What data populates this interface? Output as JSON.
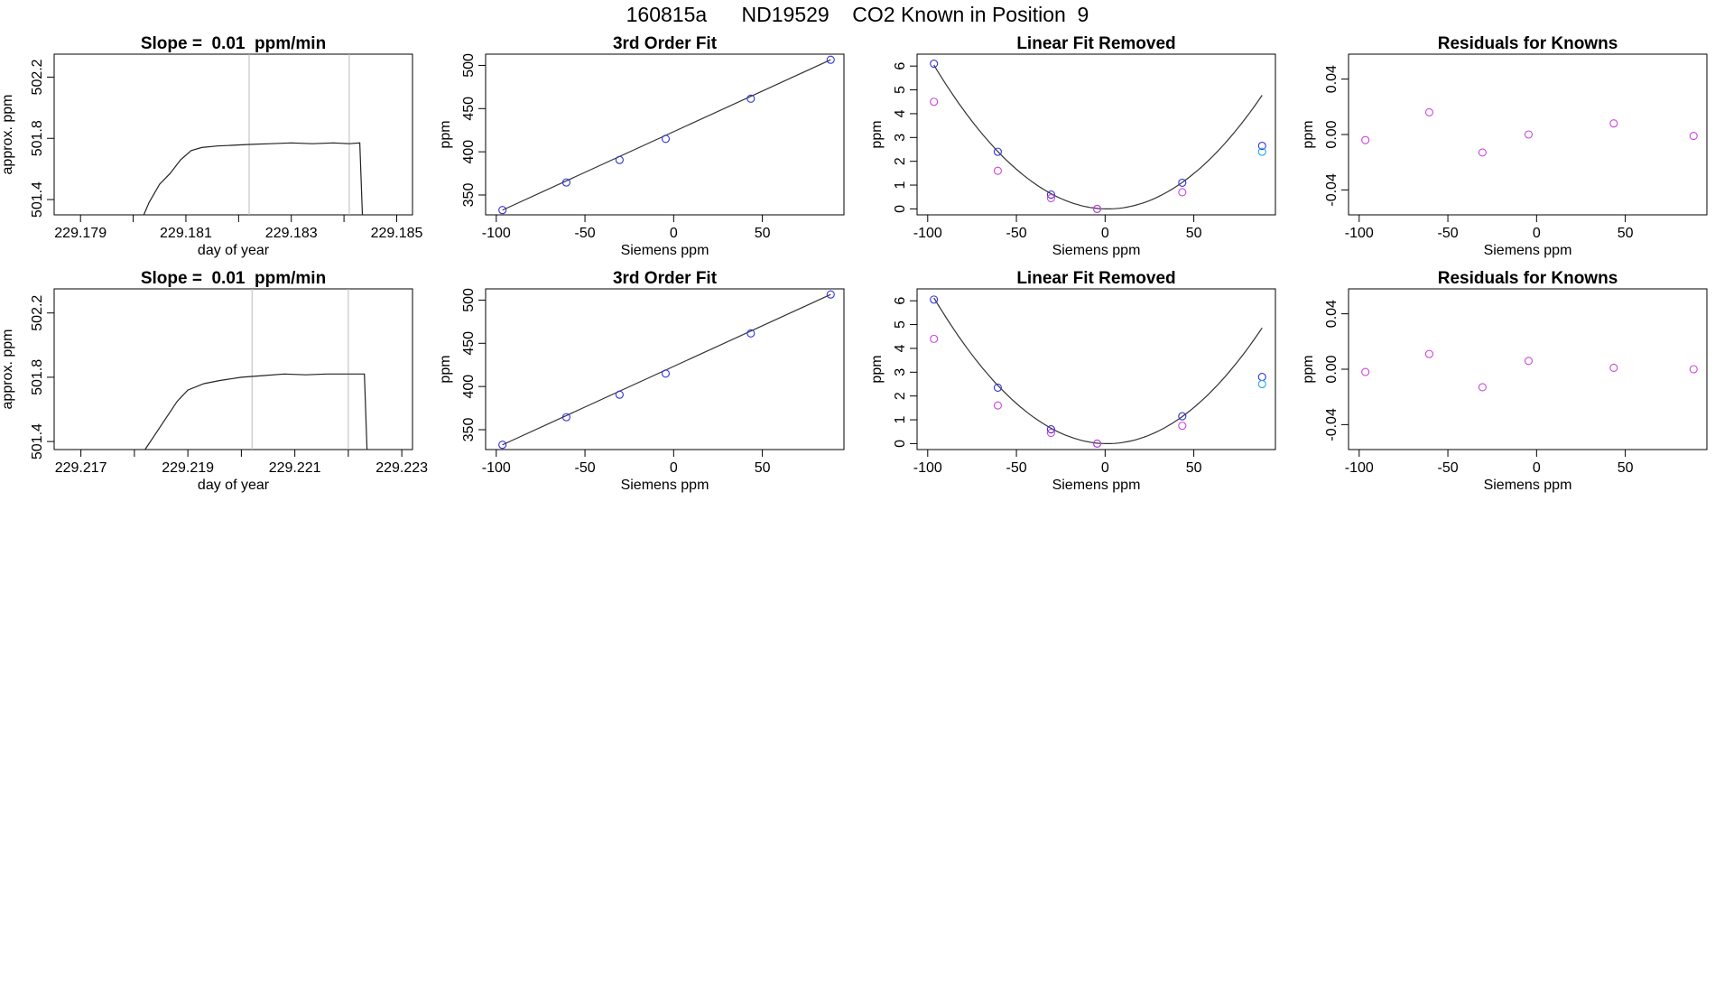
{
  "page_title": "160815a      ND19529    CO2 Known in Position  9",
  "colors": {
    "fit_line": "#333333",
    "point_blue": "#3333dd",
    "point_magenta": "#cc44dd",
    "point_cyan": "#22aadd",
    "trace": "#222222",
    "vline": "#bbbbbb"
  },
  "chart_data": [
    {
      "type": "line",
      "row": 1,
      "col": 1,
      "title": "Slope =  0.01  ppm/min",
      "xlabel": "day of year",
      "ylabel": "approx. ppm",
      "xlim": [
        229.1785,
        229.1853
      ],
      "ylim": [
        501.3,
        502.35
      ],
      "xticks": [
        229.179,
        229.18,
        229.181,
        229.182,
        229.183,
        229.184,
        229.185
      ],
      "xticklabels": [
        "229.179",
        "",
        "229.181",
        "",
        "229.183",
        "",
        "229.185"
      ],
      "yticks": [
        501.4,
        501.8,
        502.2
      ],
      "yticklabels": [
        "501.4",
        "501.8",
        "502.2"
      ],
      "vlines": [
        229.1822,
        229.1841
      ],
      "series": [
        {
          "name": "approx. ppm",
          "points": [
            [
              229.1802,
              501.3
            ],
            [
              229.1803,
              501.38
            ],
            [
              229.1805,
              501.5
            ],
            [
              229.1807,
              501.57
            ],
            [
              229.1809,
              501.66
            ],
            [
              229.1811,
              501.72
            ],
            [
              229.1813,
              501.74
            ],
            [
              229.1816,
              501.75
            ],
            [
              229.1819,
              501.755
            ],
            [
              229.1822,
              501.76
            ],
            [
              229.1826,
              501.765
            ],
            [
              229.183,
              501.77
            ],
            [
              229.1834,
              501.765
            ],
            [
              229.1838,
              501.77
            ],
            [
              229.1841,
              501.765
            ],
            [
              229.1843,
              501.77
            ],
            [
              229.18435,
              501.3
            ]
          ]
        }
      ]
    },
    {
      "type": "scatter",
      "row": 1,
      "col": 2,
      "title": "3rd Order Fit",
      "xlabel": "Siemens ppm",
      "ylabel": "ppm",
      "xlim": [
        -106,
        96
      ],
      "ylim": [
        327,
        513
      ],
      "xticks": [
        -100,
        -50,
        0,
        50
      ],
      "xticklabels": [
        "-100",
        "-50",
        "0",
        "50"
      ],
      "yticks": [
        350,
        400,
        450,
        500
      ],
      "yticklabels": [
        "350",
        "400",
        "450",
        "500"
      ],
      "fit_line": [
        [
          -96.5,
          332.5
        ],
        [
          88.5,
          506.5
        ]
      ],
      "series": [
        {
          "name": "knowns",
          "x": [
            -96.5,
            -60.5,
            -30.5,
            -4.5,
            43.5,
            88.5
          ],
          "y": [
            332.5,
            364.5,
            390.5,
            415.0,
            461.5,
            506.5
          ],
          "color_key": "point_blue"
        }
      ]
    },
    {
      "type": "scatter",
      "row": 1,
      "col": 3,
      "title": "Linear Fit Removed",
      "xlabel": "Siemens ppm",
      "ylabel": "ppm",
      "xlim": [
        -106,
        96
      ],
      "ylim": [
        -0.25,
        6.5
      ],
      "xticks": [
        -100,
        -50,
        0,
        50
      ],
      "xticklabels": [
        "-100",
        "-50",
        "0",
        "50"
      ],
      "yticks": [
        0,
        1,
        2,
        3,
        4,
        5,
        6
      ],
      "yticklabels": [
        "0",
        "1",
        "2",
        "3",
        "4",
        "5",
        "6"
      ],
      "curve": {
        "a": 0.00063,
        "b": -0.0018,
        "c": 0,
        "xmin": -96.5,
        "xmax": 88.5
      },
      "series": [
        {
          "name": "fit points",
          "x": [
            -96.5,
            -60.5,
            -30.5,
            -4.5,
            43.5,
            88.5
          ],
          "y": [
            6.1,
            2.4,
            0.6,
            0.0,
            1.1,
            2.65
          ],
          "color_key": "point_blue"
        },
        {
          "name": "raw points",
          "x": [
            -96.5,
            -60.5,
            -30.5,
            -4.5,
            43.5
          ],
          "y": [
            4.5,
            1.6,
            0.45,
            0.0,
            0.7
          ],
          "color_key": "point_magenta"
        },
        {
          "name": "extra",
          "x": [
            88.5
          ],
          "y": [
            2.4
          ],
          "color_key": "point_cyan"
        }
      ]
    },
    {
      "type": "scatter",
      "row": 1,
      "col": 4,
      "title": "Residuals for Knowns",
      "xlabel": "Siemens ppm",
      "ylabel": "ppm",
      "xlim": [
        -106,
        96
      ],
      "ylim": [
        -0.058,
        0.058
      ],
      "xticks": [
        -100,
        -50,
        0,
        50
      ],
      "xticklabels": [
        "-100",
        "-50",
        "0",
        "50"
      ],
      "yticks": [
        -0.04,
        0.0,
        0.04
      ],
      "yticklabels": [
        "-0.04",
        "0.00",
        "0.04"
      ],
      "series": [
        {
          "name": "residuals",
          "x": [
            -96.5,
            -60.5,
            -30.5,
            -4.5,
            43.5,
            88.5
          ],
          "y": [
            -0.004,
            0.016,
            -0.013,
            0.0,
            0.008,
            -0.001
          ],
          "color_key": "point_magenta"
        }
      ]
    },
    {
      "type": "line",
      "row": 2,
      "col": 1,
      "title": "Slope =  0.01  ppm/min",
      "xlabel": "day of year",
      "ylabel": "approx. ppm",
      "xlim": [
        229.2165,
        229.2232
      ],
      "ylim": [
        501.35,
        502.35
      ],
      "xticks": [
        229.217,
        229.218,
        229.219,
        229.22,
        229.221,
        229.222,
        229.223
      ],
      "xticklabels": [
        "229.217",
        "",
        "229.219",
        "",
        "229.221",
        "",
        "229.223"
      ],
      "yticks": [
        501.4,
        501.8,
        502.2
      ],
      "yticklabels": [
        "501.4",
        "501.8",
        "502.2"
      ],
      "vlines": [
        229.2202,
        229.222
      ],
      "series": [
        {
          "name": "approx. ppm",
          "points": [
            [
              229.2182,
              501.35
            ],
            [
              229.2184,
              501.45
            ],
            [
              229.2186,
              501.55
            ],
            [
              229.2188,
              501.65
            ],
            [
              229.219,
              501.72
            ],
            [
              229.2193,
              501.76
            ],
            [
              229.2196,
              501.78
            ],
            [
              229.22,
              501.8
            ],
            [
              229.2204,
              501.81
            ],
            [
              229.2208,
              501.82
            ],
            [
              229.2212,
              501.815
            ],
            [
              229.2216,
              501.82
            ],
            [
              229.222,
              501.82
            ],
            [
              229.2223,
              501.82
            ],
            [
              229.22235,
              501.35
            ]
          ]
        }
      ]
    },
    {
      "type": "scatter",
      "row": 2,
      "col": 2,
      "title": "3rd Order Fit",
      "xlabel": "Siemens ppm",
      "ylabel": "ppm",
      "xlim": [
        -106,
        96
      ],
      "ylim": [
        327,
        513
      ],
      "xticks": [
        -100,
        -50,
        0,
        50
      ],
      "xticklabels": [
        "-100",
        "-50",
        "0",
        "50"
      ],
      "yticks": [
        350,
        400,
        450,
        500
      ],
      "yticklabels": [
        "350",
        "400",
        "450",
        "500"
      ],
      "fit_line": [
        [
          -96.5,
          332.5
        ],
        [
          88.5,
          506.5
        ]
      ],
      "series": [
        {
          "name": "knowns",
          "x": [
            -96.5,
            -60.5,
            -30.5,
            -4.5,
            43.5,
            88.5
          ],
          "y": [
            332.5,
            364.5,
            390.5,
            415.0,
            461.5,
            506.5
          ],
          "color_key": "point_blue"
        }
      ]
    },
    {
      "type": "scatter",
      "row": 2,
      "col": 3,
      "title": "Linear Fit Removed",
      "xlabel": "Siemens ppm",
      "ylabel": "ppm",
      "xlim": [
        -106,
        96
      ],
      "ylim": [
        -0.25,
        6.5
      ],
      "xticks": [
        -100,
        -50,
        0,
        50
      ],
      "xticklabels": [
        "-100",
        "-50",
        "0",
        "50"
      ],
      "yticks": [
        0,
        1,
        2,
        3,
        4,
        5,
        6
      ],
      "yticklabels": [
        "0",
        "1",
        "2",
        "3",
        "4",
        "5",
        "6"
      ],
      "curve": {
        "a": 0.00064,
        "b": -0.0017,
        "c": 0,
        "xmin": -96.5,
        "xmax": 88.5
      },
      "series": [
        {
          "name": "fit points",
          "x": [
            -96.5,
            -60.5,
            -30.5,
            -4.5,
            43.5,
            88.5
          ],
          "y": [
            6.05,
            2.35,
            0.6,
            0.0,
            1.15,
            2.8
          ],
          "color_key": "point_blue"
        },
        {
          "name": "raw points",
          "x": [
            -96.5,
            -60.5,
            -30.5,
            -4.5,
            43.5
          ],
          "y": [
            4.4,
            1.6,
            0.45,
            0.0,
            0.75
          ],
          "color_key": "point_magenta"
        },
        {
          "name": "extra",
          "x": [
            88.5
          ],
          "y": [
            2.5
          ],
          "color_key": "point_cyan"
        }
      ]
    },
    {
      "type": "scatter",
      "row": 2,
      "col": 4,
      "title": "Residuals for Knowns",
      "xlabel": "Siemens ppm",
      "ylabel": "ppm",
      "xlim": [
        -106,
        96
      ],
      "ylim": [
        -0.058,
        0.058
      ],
      "xticks": [
        -100,
        -50,
        0,
        50
      ],
      "xticklabels": [
        "-100",
        "-50",
        "0",
        "50"
      ],
      "yticks": [
        -0.04,
        0.0,
        0.04
      ],
      "yticklabels": [
        "-0.04",
        "0.00",
        "0.04"
      ],
      "series": [
        {
          "name": "residuals",
          "x": [
            -96.5,
            -60.5,
            -30.5,
            -4.5,
            43.5,
            88.5
          ],
          "y": [
            -0.002,
            0.011,
            -0.013,
            0.006,
            0.001,
            0.0
          ],
          "color_key": "point_magenta"
        }
      ]
    }
  ]
}
